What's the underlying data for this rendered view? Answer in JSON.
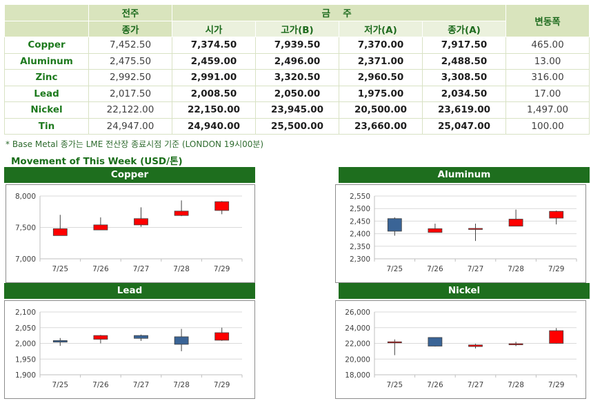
{
  "table": {
    "header": {
      "prev_close_top": "전주",
      "prev_close_bottom": "종가",
      "this_week": "금 주",
      "change": "변동폭",
      "cols": [
        "시가",
        "고가(B)",
        "저가(A)",
        "종가(A)"
      ]
    },
    "rows": [
      {
        "metal": "Copper",
        "prev": "7,452.50",
        "open": "7,374.50",
        "high": "7,939.50",
        "low": "7,370.00",
        "close": "7,917.50",
        "change": "465.00"
      },
      {
        "metal": "Aluminum",
        "prev": "2,475.50",
        "open": "2,459.00",
        "high": "2,496.00",
        "low": "2,371.00",
        "close": "2,488.50",
        "change": "13.00"
      },
      {
        "metal": "Zinc",
        "prev": "2,992.50",
        "open": "2,991.00",
        "high": "3,320.50",
        "low": "2,960.50",
        "close": "3,308.50",
        "change": "316.00"
      },
      {
        "metal": "Lead",
        "prev": "2,017.50",
        "open": "2,008.50",
        "high": "2,050.00",
        "low": "1,975.00",
        "close": "2,034.50",
        "change": "17.00"
      },
      {
        "metal": "Nickel",
        "prev": "22,122.00",
        "open": "22,150.00",
        "high": "23,945.00",
        "low": "20,500.00",
        "close": "23,619.00",
        "change": "1,497.00"
      },
      {
        "metal": "Tin",
        "prev": "24,947.00",
        "open": "24,940.00",
        "high": "25,500.00",
        "low": "23,660.00",
        "close": "25,047.00",
        "change": "100.00"
      }
    ]
  },
  "note": "* Base Metal 종가는 LME 전산장 종료시점 기준 (LONDON 19시00분)",
  "section_title": "Movement of This Week (USD/톤)",
  "colors": {
    "up": "#ff0000",
    "down": "#3a6496",
    "header_bar": "#1e6e1e",
    "grid": "#d9d9d9"
  },
  "chart_data": [
    {
      "type": "candlestick",
      "title": "Copper",
      "categories": [
        "7/25",
        "7/26",
        "7/27",
        "7/28",
        "7/29"
      ],
      "ylim": [
        7000,
        8000
      ],
      "yticks": [
        7000,
        7500,
        8000
      ],
      "ytick_labels": [
        "7,000",
        "7,500",
        "8,000"
      ],
      "ohlc": [
        {
          "open": 7370,
          "high": 7700,
          "low": 7370,
          "close": 7480
        },
        {
          "open": 7460,
          "high": 7660,
          "low": 7460,
          "close": 7540
        },
        {
          "open": 7540,
          "high": 7820,
          "low": 7510,
          "close": 7640
        },
        {
          "open": 7690,
          "high": 7930,
          "low": 7680,
          "close": 7760
        },
        {
          "open": 7770,
          "high": 7920,
          "low": 7710,
          "close": 7910
        }
      ]
    },
    {
      "type": "candlestick",
      "title": "Aluminum",
      "categories": [
        "7/25",
        "7/26",
        "7/27",
        "7/28",
        "7/29"
      ],
      "ylim": [
        2300,
        2550
      ],
      "yticks": [
        2300,
        2350,
        2400,
        2450,
        2500,
        2550
      ],
      "ytick_labels": [
        "2,300",
        "2,350",
        "2,400",
        "2,450",
        "2,500",
        "2,550"
      ],
      "ohlc": [
        {
          "open": 2460,
          "high": 2465,
          "low": 2392,
          "close": 2410
        },
        {
          "open": 2405,
          "high": 2440,
          "low": 2405,
          "close": 2420
        },
        {
          "open": 2420,
          "high": 2440,
          "low": 2371,
          "close": 2421
        },
        {
          "open": 2430,
          "high": 2496,
          "low": 2430,
          "close": 2458
        },
        {
          "open": 2462,
          "high": 2492,
          "low": 2437,
          "close": 2489
        }
      ]
    },
    {
      "type": "candlestick",
      "title": "Lead",
      "categories": [
        "7/25",
        "7/26",
        "7/27",
        "7/28",
        "7/29"
      ],
      "ylim": [
        1900,
        2100
      ],
      "yticks": [
        1900,
        1950,
        2000,
        2050,
        2100
      ],
      "ytick_labels": [
        "1,900",
        "1,950",
        "2,000",
        "2,050",
        "2,100"
      ],
      "ohlc": [
        {
          "open": 2009,
          "high": 2017,
          "low": 1992,
          "close": 2004
        },
        {
          "open": 2013,
          "high": 2027,
          "low": 2000,
          "close": 2025
        },
        {
          "open": 2025,
          "high": 2028,
          "low": 2008,
          "close": 2016
        },
        {
          "open": 2021,
          "high": 2046,
          "low": 1975,
          "close": 1997
        },
        {
          "open": 2010,
          "high": 2050,
          "low": 2008,
          "close": 2034
        }
      ]
    },
    {
      "type": "candlestick",
      "title": "Nickel",
      "categories": [
        "7/25",
        "7/26",
        "7/27",
        "7/28",
        "7/29"
      ],
      "ylim": [
        18000,
        26000
      ],
      "yticks": [
        18000,
        20000,
        22000,
        24000,
        26000
      ],
      "ytick_labels": [
        "18,000",
        "20,000",
        "22,000",
        "24,000",
        "26,000"
      ],
      "ohlc": [
        {
          "open": 22150,
          "high": 22500,
          "low": 20500,
          "close": 22200
        },
        {
          "open": 22750,
          "high": 22750,
          "low": 21600,
          "close": 21650
        },
        {
          "open": 21600,
          "high": 21950,
          "low": 21350,
          "close": 21800
        },
        {
          "open": 21900,
          "high": 22200,
          "low": 21650,
          "close": 21950
        },
        {
          "open": 22000,
          "high": 23945,
          "low": 21950,
          "close": 23619
        }
      ]
    }
  ]
}
